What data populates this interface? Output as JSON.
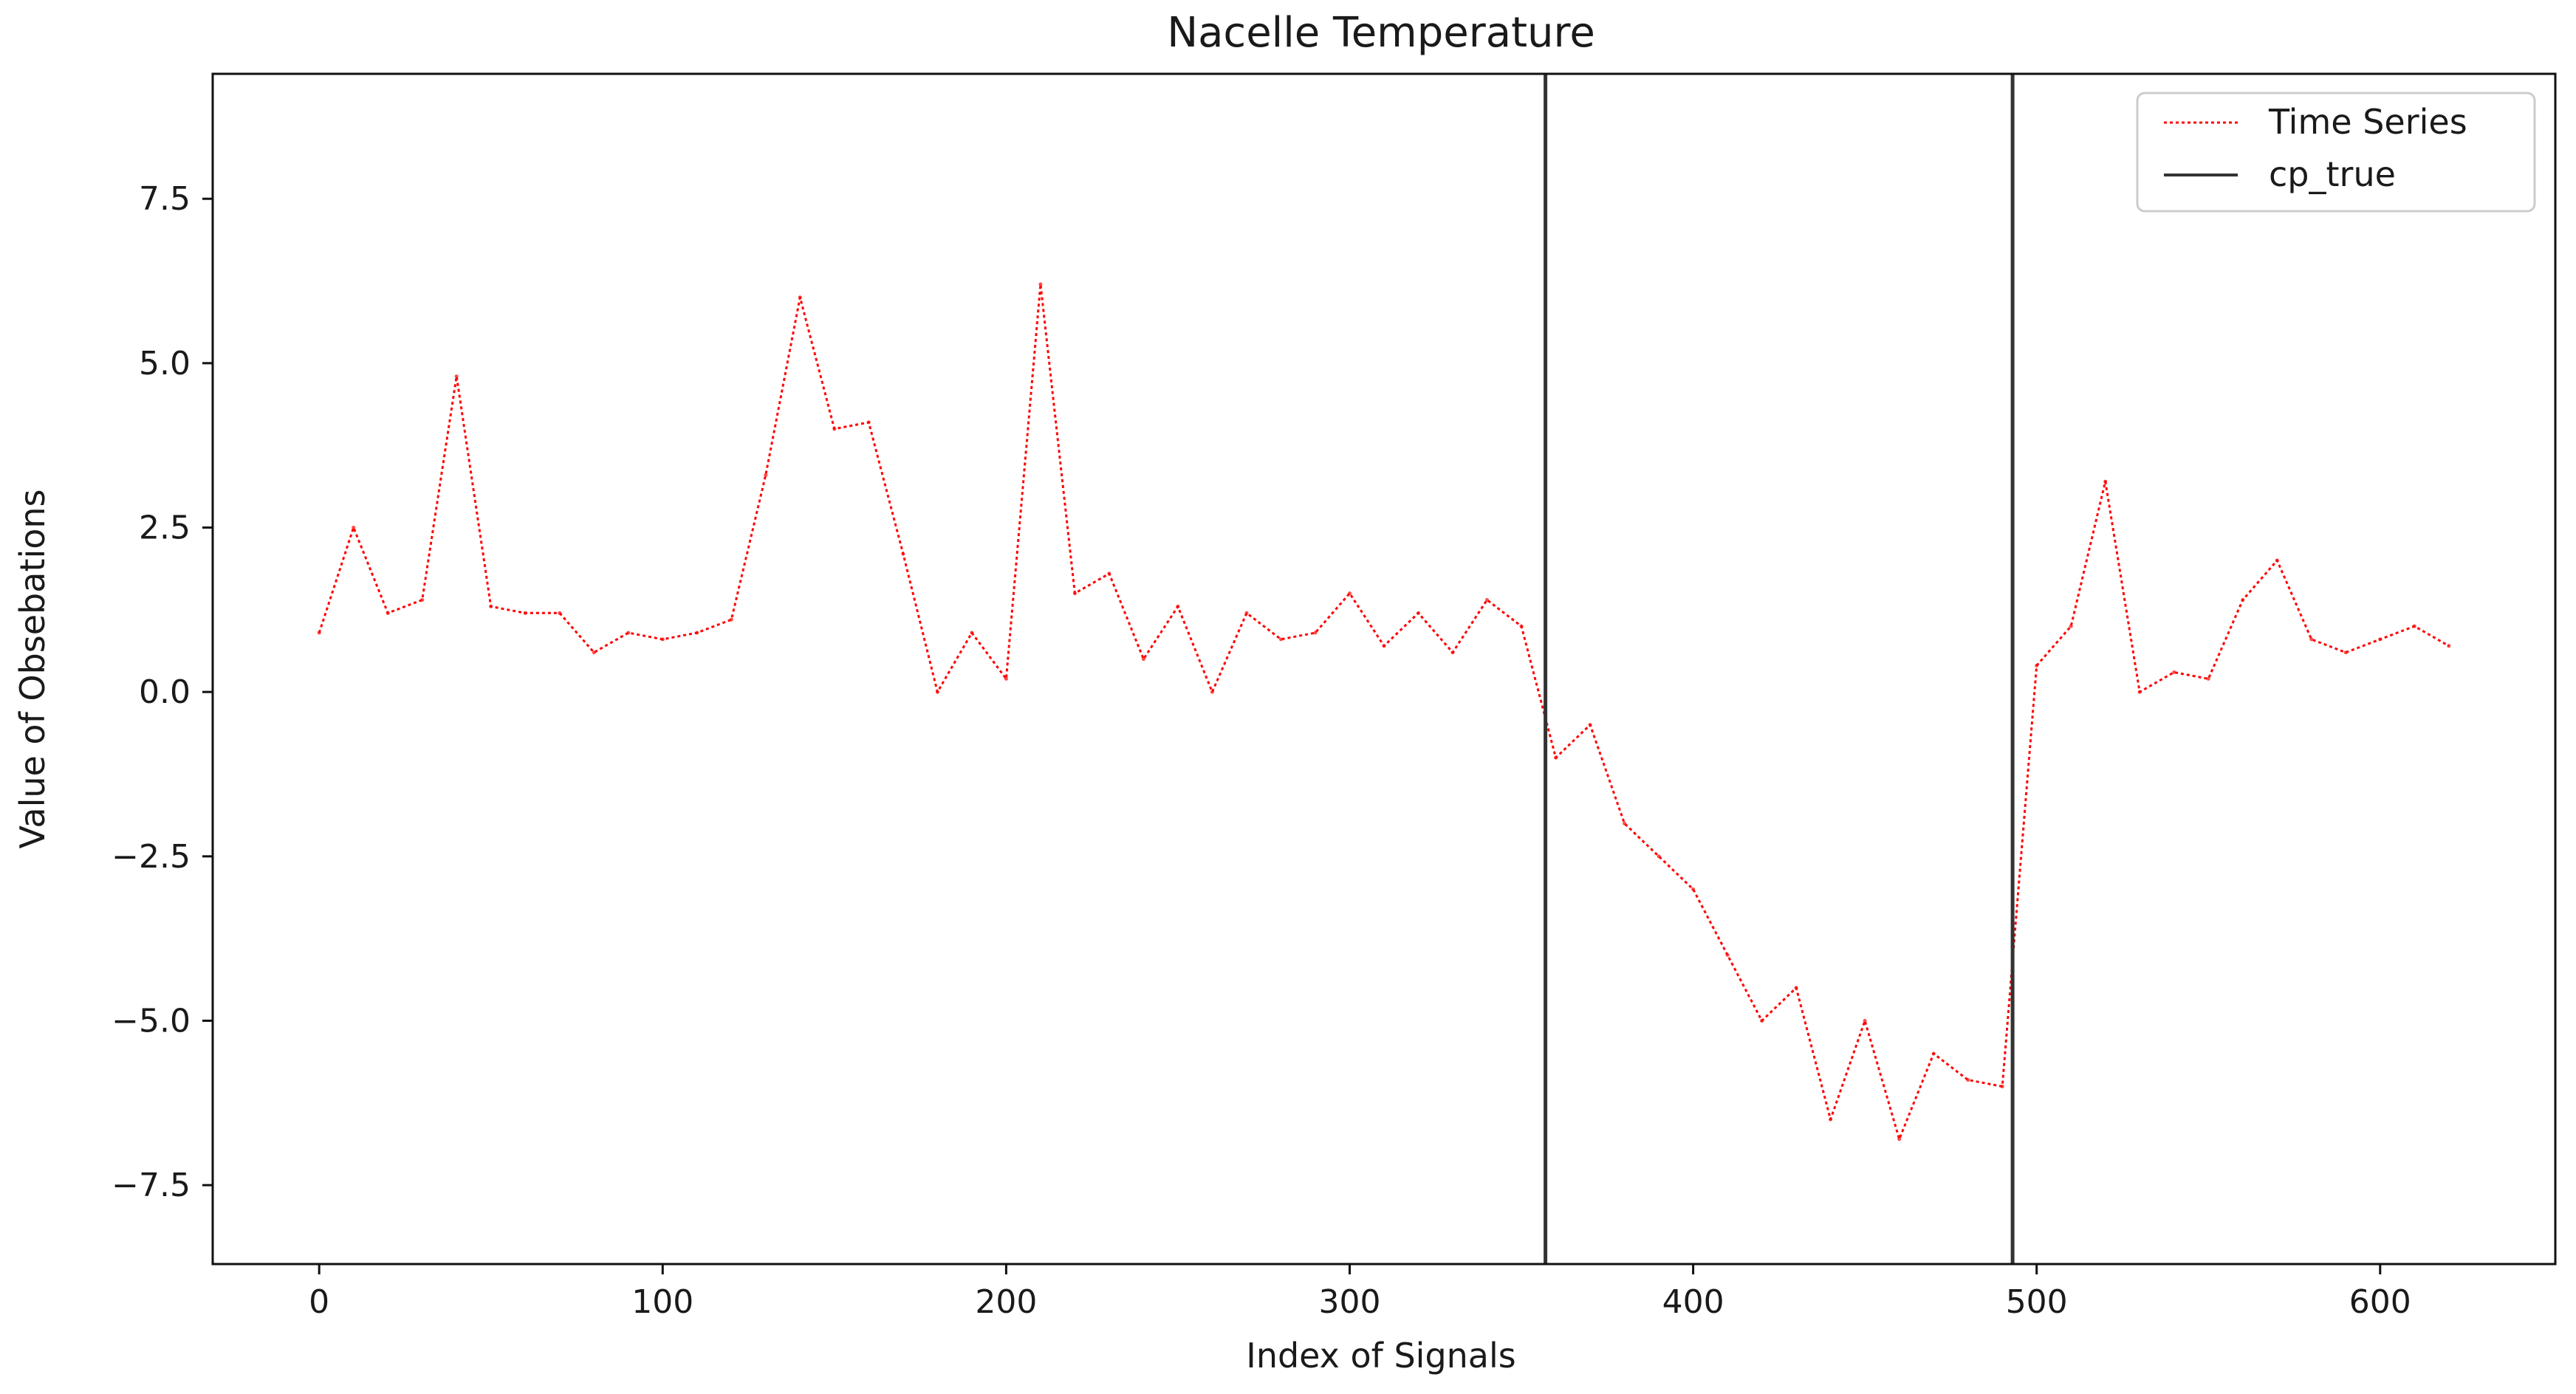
{
  "chart_data": {
    "type": "line",
    "title": "Nacelle Temperature",
    "xlabel": "Index of Signals",
    "ylabel": "Value of Obsebations",
    "xlim": [
      -31,
      651
    ],
    "ylim": [
      -8.7,
      9.4
    ],
    "x_ticks": [
      0,
      100,
      200,
      300,
      400,
      500,
      600
    ],
    "x_tick_labels": [
      "0",
      "100",
      "200",
      "300",
      "400",
      "500",
      "600"
    ],
    "y_ticks": [
      7.5,
      5.0,
      2.5,
      0.0,
      -2.5,
      -5.0,
      -7.5
    ],
    "y_tick_labels": [
      "7.5",
      "5.0",
      "2.5",
      "0.0",
      "−2.5",
      "−5.0",
      "−7.5"
    ],
    "grid": false,
    "legend": {
      "placement": "top-right",
      "entries": [
        {
          "label": "Time Series",
          "color": "#ff0000",
          "style": "dotted"
        },
        {
          "label": "cp_true",
          "color": "#333333",
          "style": "solid"
        }
      ]
    },
    "series": [
      {
        "name": "Time Series",
        "color": "#ff0000",
        "style": "dotted",
        "x_start": 0,
        "x_step": 10,
        "values": [
          0.9,
          2.5,
          1.2,
          1.4,
          4.8,
          1.3,
          1.2,
          1.2,
          0.6,
          0.9,
          0.8,
          0.9,
          1.1,
          3.3,
          6.0,
          4.0,
          4.1,
          2.1,
          0.0,
          0.9,
          0.2,
          6.2,
          1.5,
          1.8,
          0.5,
          1.3,
          0.0,
          1.2,
          0.8,
          0.9,
          1.5,
          0.7,
          1.2,
          0.6,
          1.4,
          1.0,
          -1.0,
          -0.5,
          -2.0,
          -2.5,
          -3.0,
          -4.0,
          -5.0,
          -4.5,
          -6.5,
          -5.0,
          -6.8,
          -5.5,
          -5.9,
          -6.0,
          0.4,
          1.0,
          3.2,
          0.0,
          0.3,
          0.2,
          1.4,
          2.0,
          0.8,
          0.6,
          0.8,
          1.0,
          0.7
        ]
      },
      {
        "name": "cp_true",
        "type": "vline",
        "color": "#333333",
        "x_values": [
          357,
          493
        ]
      }
    ]
  }
}
